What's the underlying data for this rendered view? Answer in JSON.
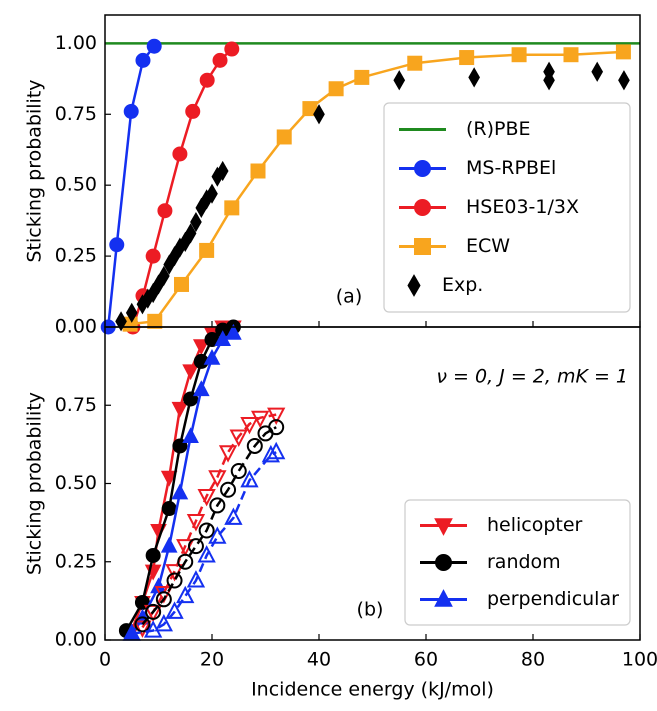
{
  "chart_data": [
    {
      "type": "line",
      "ylabel": "Sticking probability",
      "panel_label": "(a)",
      "xlim": [
        0,
        100
      ],
      "xticks": [
        0,
        20,
        40,
        60,
        80,
        100
      ],
      "xticklabels": false,
      "ylim": [
        0,
        1.1
      ],
      "yticks": [
        {
          "value": 0,
          "label": "0.00"
        },
        {
          "value": 0.25,
          "label": "0.25"
        },
        {
          "value": 0.5,
          "label": "0.50"
        },
        {
          "value": 0.75,
          "label": "0.75"
        },
        {
          "value": 1,
          "label": "1.00"
        }
      ],
      "legend": "lower right",
      "series": [
        {
          "name": "(R)PBE",
          "color": "#1f8a1f",
          "marker": "none",
          "line": "solid",
          "x": [
            0,
            100
          ],
          "values": [
            1,
            1
          ]
        },
        {
          "name": "MS-RPBEl",
          "color": "#1430f0",
          "marker": "circle",
          "line": "solid",
          "x": [
            0.6,
            2.2,
            4.9,
            7.1,
            9.2
          ],
          "values": [
            0.0,
            0.29,
            0.76,
            0.94,
            0.99
          ]
        },
        {
          "name": "HSE03-1/3X",
          "color": "#ec1c24",
          "marker": "circle",
          "line": "solid",
          "x": [
            5.2,
            7.1,
            9.0,
            11.2,
            14.0,
            16.4,
            19.1,
            21.5,
            23.7
          ],
          "values": [
            0.0,
            0.11,
            0.25,
            0.41,
            0.61,
            0.76,
            0.87,
            0.94,
            0.98
          ]
        },
        {
          "name": "ECW",
          "color": "#f8a51e",
          "marker": "square",
          "line": "solid",
          "x": [
            4.7,
            9.3,
            14.3,
            19.0,
            23.7,
            28.6,
            33.5,
            38.3,
            43.2,
            48.0,
            57.9,
            67.6,
            77.4,
            87.1,
            96.9
          ],
          "values": [
            0.01,
            0.02,
            0.15,
            0.27,
            0.42,
            0.55,
            0.67,
            0.77,
            0.84,
            0.88,
            0.93,
            0.95,
            0.96,
            0.96,
            0.97
          ]
        },
        {
          "name": "Exp.",
          "color": "#000000",
          "marker": "diamond",
          "line": "none",
          "x": [
            3,
            5,
            7,
            8,
            9,
            10,
            11,
            12,
            13,
            14,
            15,
            16,
            17,
            18,
            19,
            20,
            21,
            22,
            40,
            55,
            69,
            83,
            83,
            92,
            97
          ],
          "values": [
            0.02,
            0.05,
            0.08,
            0.1,
            0.12,
            0.15,
            0.18,
            0.22,
            0.25,
            0.28,
            0.3,
            0.33,
            0.37,
            0.42,
            0.45,
            0.47,
            0.53,
            0.55,
            0.75,
            0.87,
            0.88,
            0.87,
            0.9,
            0.9,
            0.87
          ]
        }
      ]
    },
    {
      "type": "line",
      "ylabel": "Sticking probability",
      "xlabel": "Incidence energy (kJ/mol)",
      "panel_label": "(b)",
      "annotation": "ν = 0, J = 2, mK = 1",
      "xlim": [
        0,
        100
      ],
      "xticks": [
        0,
        20,
        40,
        60,
        80,
        100
      ],
      "xticklabels": true,
      "ylim": [
        0,
        1.0
      ],
      "yticks": [
        {
          "value": 0,
          "label": "0.00"
        },
        {
          "value": 0.25,
          "label": "0.25"
        },
        {
          "value": 0.5,
          "label": "0.50"
        },
        {
          "value": 0.75,
          "label": "0.75"
        }
      ],
      "legend": "lower right",
      "series": [
        {
          "name": "helicopter",
          "color": "#ec1c24",
          "marker": "triangle-down",
          "filled": true,
          "line": "solid",
          "x": [
            5,
            7,
            9,
            10,
            12,
            14,
            16,
            18,
            20,
            22,
            24
          ],
          "values": [
            0.03,
            0.12,
            0.22,
            0.35,
            0.52,
            0.74,
            0.86,
            0.94,
            0.98,
            1.0,
            1.0
          ]
        },
        {
          "name": "random",
          "color": "#000000",
          "marker": "circle",
          "filled": true,
          "line": "solid",
          "x": [
            4,
            7,
            9,
            12,
            14,
            16,
            18,
            20,
            22,
            24
          ],
          "values": [
            0.03,
            0.12,
            0.27,
            0.42,
            0.62,
            0.77,
            0.89,
            0.96,
            0.99,
            1.0
          ]
        },
        {
          "name": "perpendicular",
          "color": "#1430f0",
          "marker": "triangle-up",
          "filled": true,
          "line": "solid",
          "x": [
            5,
            7,
            10,
            12,
            14,
            16,
            18,
            20,
            22,
            24
          ],
          "values": [
            0.02,
            0.07,
            0.17,
            0.3,
            0.47,
            0.65,
            0.8,
            0.9,
            0.96,
            0.98
          ]
        },
        {
          "color": "#ec1c24",
          "marker": "triangle-down",
          "filled": false,
          "line": "dashed",
          "x": [
            7,
            9,
            11,
            13,
            15,
            17,
            19,
            21,
            23,
            25,
            27,
            29,
            32
          ],
          "values": [
            0.04,
            0.09,
            0.15,
            0.22,
            0.3,
            0.38,
            0.46,
            0.52,
            0.6,
            0.65,
            0.69,
            0.71,
            0.72
          ]
        },
        {
          "color": "#000000",
          "marker": "circle",
          "filled": false,
          "line": "dashed",
          "x": [
            7,
            9,
            11,
            13,
            15,
            17,
            19,
            21,
            23,
            25,
            28,
            30,
            32
          ],
          "values": [
            0.05,
            0.09,
            0.13,
            0.19,
            0.25,
            0.3,
            0.35,
            0.43,
            0.48,
            0.54,
            0.62,
            0.66,
            0.68
          ]
        },
        {
          "color": "#1430f0",
          "marker": "triangle-up",
          "filled": false,
          "line": "dashed",
          "x": [
            5,
            9,
            11,
            13,
            15,
            17,
            19,
            21,
            24,
            27,
            31,
            32
          ],
          "values": [
            0.02,
            0.03,
            0.05,
            0.09,
            0.14,
            0.19,
            0.27,
            0.33,
            0.39,
            0.51,
            0.59,
            0.6
          ]
        }
      ]
    }
  ]
}
